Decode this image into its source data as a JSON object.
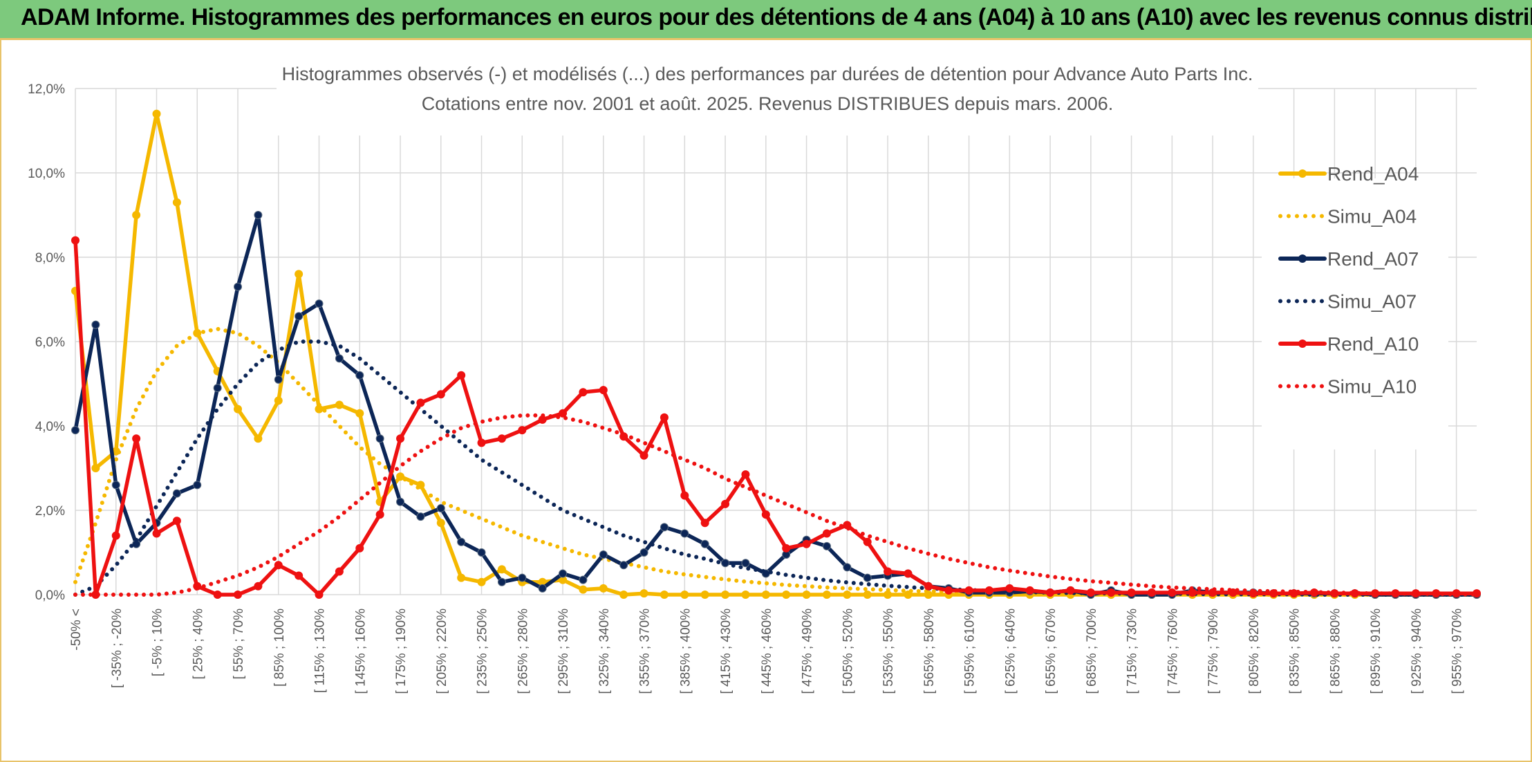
{
  "header": {
    "title": "ADAM Informe. Histogrammes des performances en euros pour des détentions de 4 ans (A04) à 10 ans (A10) avec les revenus connus distribués"
  },
  "chart_data": {
    "type": "line",
    "title": "Histogrammes observés (-) et modélisés (...) des performances par durées de détention pour Advance Auto Parts Inc.",
    "subtitle": "Cotations entre nov. 2001 et août. 2025. Revenus DISTRIBUES depuis mars. 2006.",
    "xlabel": "",
    "ylabel": "",
    "ylim": [
      0,
      12
    ],
    "y_ticks": [
      "0,0%",
      "2,0%",
      "4,0%",
      "6,0%",
      "8,0%",
      "10,0%",
      "12,0%"
    ],
    "grid": true,
    "legend_position": "right",
    "x_labels": [
      "-50% <",
      "[ -35% ; -20%",
      "[ -5% ; 10%",
      "[ 25% ; 40%",
      "[ 55% ; 70%",
      "[ 85% ; 100%",
      "[ 115% ; 130%",
      "[ 145% ; 160%",
      "[ 175% ; 190%",
      "[ 205% ; 220%",
      "[ 235% ; 250%",
      "[ 265% ; 280%",
      "[ 295% ; 310%",
      "[ 325% ; 340%",
      "[ 355% ; 370%",
      "[ 385% ; 400%",
      "[ 415% ; 430%",
      "[ 445% ; 460%",
      "[ 475% ; 490%",
      "[ 505% ; 520%",
      "[ 535% ; 550%",
      "[ 565% ; 580%",
      "[ 595% ; 610%",
      "[ 625% ; 640%",
      "[ 655% ; 670%",
      "[ 685% ; 700%",
      "[ 715% ; 730%",
      "[ 745% ; 760%",
      "[ 775% ; 790%",
      "[ 805% ; 820%",
      "[ 835% ; 850%",
      "[ 865% ; 880%",
      "[ 895% ; 910%",
      "[ 925% ; 940%",
      "[ 955% ; 970%"
    ],
    "series": [
      {
        "name": "Rend_A04",
        "style": "solid",
        "color": "#f5b800",
        "values": [
          7.2,
          3.0,
          3.4,
          9.0,
          11.4,
          9.3,
          6.2,
          5.3,
          4.4,
          3.7,
          4.6,
          7.6,
          4.4,
          4.5,
          4.3,
          2.2,
          2.8,
          2.6,
          1.7,
          0.4,
          0.3,
          0.6,
          0.3,
          0.3,
          0.35,
          0.12,
          0.15,
          0,
          0.03,
          0,
          0,
          0,
          0,
          0,
          0,
          0,
          0,
          0,
          0,
          0,
          0,
          0,
          0,
          0,
          0,
          0,
          0,
          0,
          0,
          0,
          0,
          0,
          0,
          0,
          0,
          0,
          0,
          0,
          0,
          0,
          0,
          0,
          0,
          0,
          0,
          0,
          0,
          0,
          0,
          0
        ]
      },
      {
        "name": "Simu_A04",
        "style": "dotted",
        "color": "#f5b800",
        "values": [
          0.3,
          1.7,
          3.2,
          4.4,
          5.3,
          5.9,
          6.2,
          6.3,
          6.2,
          5.9,
          5.5,
          5.0,
          4.5,
          4.0,
          3.5,
          3.1,
          2.8,
          2.5,
          2.2,
          2.0,
          1.8,
          1.6,
          1.4,
          1.25,
          1.1,
          0.95,
          0.85,
          0.75,
          0.65,
          0.55,
          0.48,
          0.42,
          0.36,
          0.31,
          0.27,
          0.23,
          0.2,
          0.17,
          0.15,
          0.13,
          0.11,
          0.09,
          0.08,
          0.07,
          0.06,
          0.05,
          0.04,
          0.03,
          0.03,
          0.02,
          0.02,
          0.02,
          0.01,
          0.01,
          0.01,
          0.01,
          0.01,
          0.01,
          0,
          0,
          0,
          0,
          0,
          0,
          0,
          0,
          0,
          0,
          0,
          0
        ]
      },
      {
        "name": "Rend_A07",
        "style": "solid",
        "color": "#0c2657",
        "values": [
          3.9,
          6.4,
          2.6,
          1.2,
          1.7,
          2.4,
          2.6,
          4.9,
          7.3,
          9.0,
          5.1,
          6.6,
          6.9,
          5.6,
          5.2,
          3.7,
          2.2,
          1.85,
          2.05,
          1.25,
          1.0,
          0.3,
          0.4,
          0.15,
          0.5,
          0.35,
          0.95,
          0.7,
          1.0,
          1.6,
          1.45,
          1.2,
          0.75,
          0.75,
          0.5,
          0.95,
          1.3,
          1.15,
          0.65,
          0.4,
          0.45,
          0.5,
          0.2,
          0.15,
          0.05,
          0.05,
          0.05,
          0.08,
          0.05,
          0.1,
          0,
          0.1,
          0,
          0,
          0,
          0.1,
          0.05,
          0.05,
          0.05,
          0.03,
          0.03,
          0.03,
          0.03,
          0.03,
          0,
          0,
          0,
          0,
          0,
          0
        ]
      },
      {
        "name": "Simu_A07",
        "style": "dotted",
        "color": "#0c2657",
        "values": [
          0,
          0.2,
          0.7,
          1.3,
          2.1,
          2.9,
          3.7,
          4.4,
          5.0,
          5.5,
          5.8,
          6.0,
          6.0,
          5.9,
          5.6,
          5.2,
          4.8,
          4.4,
          4.0,
          3.6,
          3.2,
          2.9,
          2.6,
          2.3,
          2.0,
          1.8,
          1.6,
          1.4,
          1.25,
          1.1,
          0.95,
          0.85,
          0.73,
          0.63,
          0.55,
          0.47,
          0.4,
          0.34,
          0.29,
          0.25,
          0.21,
          0.18,
          0.15,
          0.13,
          0.11,
          0.09,
          0.08,
          0.06,
          0.05,
          0.04,
          0.04,
          0.03,
          0.03,
          0.02,
          0.02,
          0.02,
          0.01,
          0.01,
          0.01,
          0.01,
          0.01,
          0,
          0,
          0,
          0,
          0,
          0,
          0,
          0,
          0
        ]
      },
      {
        "name": "Rend_A10",
        "style": "solid",
        "color": "#ee1111",
        "values": [
          8.4,
          0,
          1.4,
          3.7,
          1.45,
          1.75,
          0.2,
          0,
          0,
          0.2,
          0.7,
          0.45,
          0,
          0.55,
          1.1,
          1.9,
          3.7,
          4.55,
          4.75,
          5.2,
          3.6,
          3.7,
          3.9,
          4.15,
          4.3,
          4.8,
          4.85,
          3.75,
          3.3,
          4.2,
          2.35,
          1.7,
          2.15,
          2.85,
          1.9,
          1.1,
          1.2,
          1.45,
          1.65,
          1.25,
          0.55,
          0.5,
          0.2,
          0.1,
          0.1,
          0.1,
          0.15,
          0.1,
          0.05,
          0.1,
          0.05,
          0.05,
          0.05,
          0.05,
          0.05,
          0.05,
          0.05,
          0.05,
          0.03,
          0.03,
          0.03,
          0.05,
          0.03,
          0.03,
          0.03,
          0.03,
          0.03,
          0.03,
          0.03,
          0.03
        ]
      },
      {
        "name": "Simu_A10",
        "style": "dotted",
        "color": "#ee1111",
        "values": [
          0,
          0,
          0,
          0,
          0,
          0.05,
          0.15,
          0.3,
          0.45,
          0.65,
          0.9,
          1.2,
          1.5,
          1.85,
          2.25,
          2.65,
          3.05,
          3.4,
          3.7,
          3.95,
          4.1,
          4.2,
          4.25,
          4.25,
          4.2,
          4.1,
          3.95,
          3.8,
          3.6,
          3.4,
          3.2,
          3.0,
          2.75,
          2.55,
          2.35,
          2.15,
          1.95,
          1.75,
          1.58,
          1.4,
          1.25,
          1.1,
          0.97,
          0.85,
          0.75,
          0.65,
          0.57,
          0.5,
          0.43,
          0.37,
          0.32,
          0.28,
          0.24,
          0.2,
          0.17,
          0.15,
          0.13,
          0.11,
          0.09,
          0.08,
          0.07,
          0.06,
          0.05,
          0.04,
          0.03,
          0.03,
          0.02,
          0.02,
          0.01,
          0.01
        ]
      }
    ]
  }
}
